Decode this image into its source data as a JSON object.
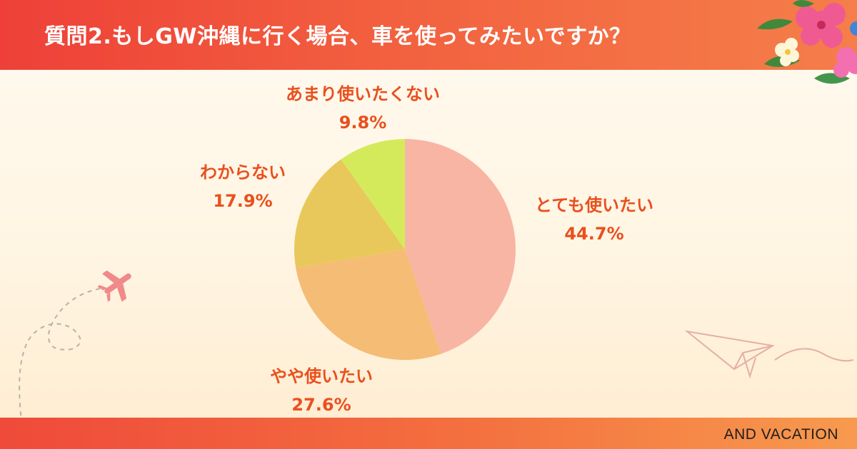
{
  "header": {
    "title": "質問2.もしGW沖縄に行く場合、車を使ってみたいですか？"
  },
  "footer": {
    "brand": "AND VACATION"
  },
  "colors": {
    "header": "#ee4038",
    "label_text": "#e9501e",
    "slices": [
      "#f8b5a4",
      "#f5bc75",
      "#e8c85a",
      "#d5ea5b"
    ]
  },
  "icons": [
    "hibiscus-flower-icon",
    "airplane-icon",
    "paper-airplane-icon"
  ],
  "chart_data": {
    "type": "pie",
    "start": "12 o'clock, clockwise",
    "slices": [
      {
        "label": "とても使いたい",
        "value": 44.7,
        "display": "44.7%"
      },
      {
        "label": "やや使いたい",
        "value": 27.6,
        "display": "27.6%"
      },
      {
        "label": "わからない",
        "value": 17.9,
        "display": "17.9%"
      },
      {
        "label": "あまり使いたくない",
        "value": 9.8,
        "display": "9.8%"
      }
    ]
  }
}
